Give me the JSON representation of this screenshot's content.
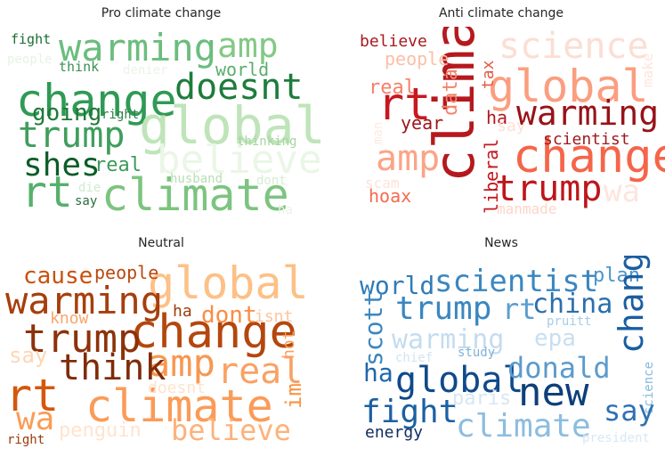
{
  "chart_data": [
    {
      "type": "wordcloud",
      "title": "Pro climate change",
      "palette": "Greens",
      "words": [
        {
          "text": "change",
          "color": "#2f9a55"
        },
        {
          "text": "warming",
          "color": "#6bbd7e"
        },
        {
          "text": "amp",
          "color": "#83c985"
        },
        {
          "text": "doesnt",
          "color": "#1e7c3c"
        },
        {
          "text": "global",
          "color": "#bfe4b9"
        },
        {
          "text": "trump",
          "color": "#3f9e5c"
        },
        {
          "text": "climate",
          "color": "#7cc47f"
        },
        {
          "text": "believe",
          "color": "#eaf6e6"
        },
        {
          "text": "rt",
          "color": "#56b06b"
        },
        {
          "text": "shes",
          "color": "#0b5d27"
        },
        {
          "text": "going",
          "color": "#1f7a38"
        },
        {
          "text": "real",
          "color": "#3e9a5a"
        },
        {
          "text": "fight",
          "color": "#1a6e33"
        },
        {
          "text": "world",
          "color": "#5aaf6d"
        },
        {
          "text": "think",
          "color": "#3b8f52"
        },
        {
          "text": "right",
          "color": "#2f7f47"
        },
        {
          "text": "people",
          "color": "#e6f3e3"
        },
        {
          "text": "denier",
          "color": "#e9f5e6"
        },
        {
          "text": "thinking",
          "color": "#a6d5a3"
        },
        {
          "text": "husband",
          "color": "#b6deb2"
        },
        {
          "text": "dont",
          "color": "#d6edd2"
        },
        {
          "text": "die",
          "color": "#d0ead0"
        },
        {
          "text": "say",
          "color": "#2b6c3b"
        },
        {
          "text": "ha",
          "color": "#e8f5e4"
        }
      ]
    },
    {
      "type": "wordcloud",
      "title": "Anti climate change",
      "palette": "Reds",
      "words": [
        {
          "text": "climate",
          "color": "#b5191e"
        },
        {
          "text": "science",
          "color": "#fcded3"
        },
        {
          "text": "global",
          "color": "#fb9e80"
        },
        {
          "text": "warming",
          "color": "#961319"
        },
        {
          "text": "change",
          "color": "#f5654a"
        },
        {
          "text": "trump",
          "color": "#bd161c"
        },
        {
          "text": "rt",
          "color": "#c8181f"
        },
        {
          "text": "amp",
          "color": "#fca487"
        },
        {
          "text": "believe",
          "color": "#a91a1e"
        },
        {
          "text": "people",
          "color": "#fcbfa7"
        },
        {
          "text": "real",
          "color": "#f6806a"
        },
        {
          "text": "year",
          "color": "#9c161b"
        },
        {
          "text": "data",
          "color": "#f2846a"
        },
        {
          "text": "tax",
          "color": "#e35a47"
        },
        {
          "text": "ha",
          "color": "#b3171d"
        },
        {
          "text": "scientist",
          "color": "#a11a1e"
        },
        {
          "text": "say",
          "color": "#fde2d8"
        },
        {
          "text": "make",
          "color": "#fde6dd"
        },
        {
          "text": "man",
          "color": "#fde9e1"
        },
        {
          "text": "scam",
          "color": "#fde3db"
        },
        {
          "text": "liberal",
          "color": "#c4161c"
        },
        {
          "text": "hoax",
          "color": "#f46a4f"
        },
        {
          "text": "wa",
          "color": "#fde5dd"
        },
        {
          "text": "manmade",
          "color": "#fcd6c9"
        }
      ]
    },
    {
      "type": "wordcloud",
      "title": "Neutral",
      "palette": "Oranges",
      "words": [
        {
          "text": "global",
          "color": "#fdc086"
        },
        {
          "text": "cause",
          "color": "#c9510e"
        },
        {
          "text": "people",
          "color": "#b9490f"
        },
        {
          "text": "warming",
          "color": "#a63f0d"
        },
        {
          "text": "change",
          "color": "#b4470e"
        },
        {
          "text": "trump",
          "color": "#8c320a"
        },
        {
          "text": "amp",
          "color": "#f79851"
        },
        {
          "text": "real",
          "color": "#f9a263"
        },
        {
          "text": "think",
          "color": "#7f2c08"
        },
        {
          "text": "climate",
          "color": "#fb9b58"
        },
        {
          "text": "rt",
          "color": "#d4570e"
        },
        {
          "text": "ha",
          "color": "#a03d0a"
        },
        {
          "text": "dont",
          "color": "#fb8c44"
        },
        {
          "text": "isnt",
          "color": "#fdc59d"
        },
        {
          "text": "know",
          "color": "#f9a66a"
        },
        {
          "text": "say",
          "color": "#fed6b4"
        },
        {
          "text": "hot",
          "color": "#f99e60"
        },
        {
          "text": "im",
          "color": "#f9913f"
        },
        {
          "text": "doesnt",
          "color": "#fee3cc"
        },
        {
          "text": "wa",
          "color": "#fb9c55"
        },
        {
          "text": "penguin",
          "color": "#fee4cf"
        },
        {
          "text": "believe",
          "color": "#fdb27a"
        },
        {
          "text": "right",
          "color": "#983a0b"
        }
      ]
    },
    {
      "type": "wordcloud",
      "title": "News",
      "palette": "Blues",
      "words": [
        {
          "text": "scientist",
          "color": "#3a87c0"
        },
        {
          "text": "world",
          "color": "#2f7bb7"
        },
        {
          "text": "plan",
          "color": "#4b94c8"
        },
        {
          "text": "china",
          "color": "#2a6fae"
        },
        {
          "text": "trump",
          "color": "#3987c1"
        },
        {
          "text": "rt",
          "color": "#5a9ecf"
        },
        {
          "text": "change",
          "color": "#1a5ea1"
        },
        {
          "text": "pruitt",
          "color": "#a8cde5"
        },
        {
          "text": "warming",
          "color": "#c4dcef"
        },
        {
          "text": "epa",
          "color": "#c9deef"
        },
        {
          "text": "scott",
          "color": "#3c86bf"
        },
        {
          "text": "chief",
          "color": "#d2e4f2"
        },
        {
          "text": "study",
          "color": "#7fb1d8"
        },
        {
          "text": "ha",
          "color": "#1f67a9"
        },
        {
          "text": "global",
          "color": "#0f4a8b"
        },
        {
          "text": "donald",
          "color": "#5b9bcd"
        },
        {
          "text": "science",
          "color": "#84b8dc"
        },
        {
          "text": "new",
          "color": "#0e3f7b"
        },
        {
          "text": "paris",
          "color": "#d6e7f4"
        },
        {
          "text": "say",
          "color": "#2e72b1"
        },
        {
          "text": "fight",
          "color": "#1b60a2"
        },
        {
          "text": "climate",
          "color": "#8dbde0"
        },
        {
          "text": "energy",
          "color": "#102f60"
        },
        {
          "text": "president",
          "color": "#d8e8f5"
        }
      ]
    }
  ]
}
